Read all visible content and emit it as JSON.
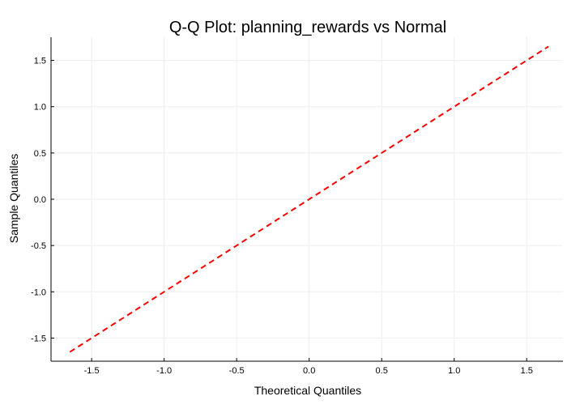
{
  "chart_data": {
    "type": "line",
    "title": "Q-Q Plot: planning_rewards vs Normal",
    "xlabel": "Theoretical Quantiles",
    "ylabel": "Sample Quantiles",
    "xlim": [
      -1.78,
      1.75
    ],
    "ylim": [
      -1.75,
      1.75
    ],
    "xticks": [
      -1.5,
      -1.0,
      -0.5,
      0.0,
      0.5,
      1.0,
      1.5
    ],
    "xtick_labels": [
      "-1.5",
      "-1.0",
      "-0.5",
      "0.0",
      "0.5",
      "1.0",
      "1.5"
    ],
    "yticks": [
      -1.5,
      -1.0,
      -0.5,
      0.0,
      0.5,
      1.0,
      1.5
    ],
    "ytick_labels": [
      "-1.5",
      "-1.0",
      "-0.5",
      "0.0",
      "0.5",
      "1.0",
      "1.5"
    ],
    "grid": true,
    "legend": "none",
    "series": [
      {
        "x": [
          -1.65,
          1.65
        ],
        "y": [
          -1.65,
          1.65
        ],
        "color": "#ff0000",
        "line_style": "dashed"
      }
    ]
  }
}
